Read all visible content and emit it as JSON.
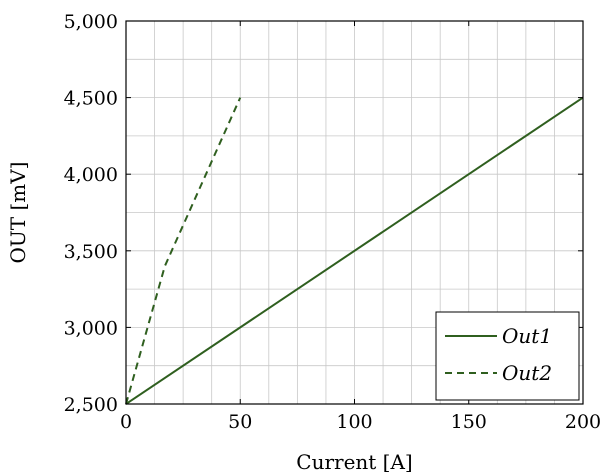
{
  "chart_data": {
    "type": "line",
    "xlabel": "Current [A]",
    "ylabel": "OUT [mV]",
    "xlim": [
      0,
      200
    ],
    "ylim": [
      2500,
      5000
    ],
    "x_ticks": [
      0,
      50,
      100,
      150,
      200
    ],
    "x_tick_labels": [
      "0",
      "50",
      "100",
      "150",
      "200"
    ],
    "y_ticks": [
      2500,
      3000,
      3500,
      4000,
      4500,
      5000
    ],
    "y_tick_labels": [
      "2,500",
      "3,000",
      "3,500",
      "4,000",
      "4,500",
      "5,000"
    ],
    "grid": true,
    "legend_position": "bottom-right",
    "series": [
      {
        "name": "Out1",
        "style": "solid",
        "color": "#2f5f1f",
        "x": [
          0,
          200
        ],
        "y": [
          2500,
          4500
        ]
      },
      {
        "name": "Out2",
        "style": "dashed",
        "color": "#2f5f1f",
        "x": [
          0,
          17,
          20,
          50
        ],
        "y": [
          2500,
          3400,
          3500,
          4500
        ]
      }
    ]
  }
}
